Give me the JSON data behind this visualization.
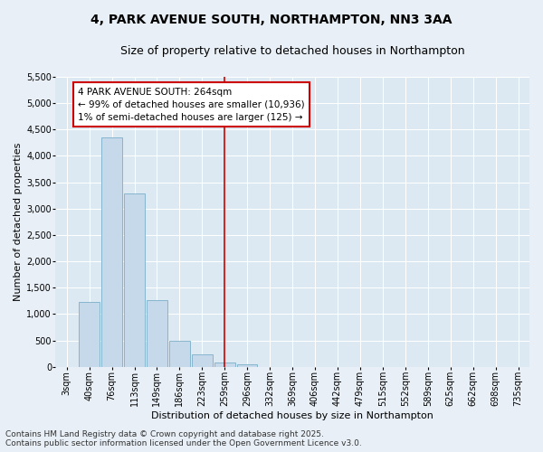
{
  "title_line1": "4, PARK AVENUE SOUTH, NORTHAMPTON, NN3 3AA",
  "title_line2": "Size of property relative to detached houses in Northampton",
  "xlabel": "Distribution of detached houses by size in Northampton",
  "ylabel": "Number of detached properties",
  "footer_line1": "Contains HM Land Registry data © Crown copyright and database right 2025.",
  "footer_line2": "Contains public sector information licensed under the Open Government Licence v3.0.",
  "annotation_line1": "4 PARK AVENUE SOUTH: 264sqm",
  "annotation_line2": "← 99% of detached houses are smaller (10,936)",
  "annotation_line3": "1% of semi-detached houses are larger (125) →",
  "categories": [
    "3sqm",
    "40sqm",
    "76sqm",
    "113sqm",
    "149sqm",
    "186sqm",
    "223sqm",
    "259sqm",
    "296sqm",
    "332sqm",
    "369sqm",
    "406sqm",
    "442sqm",
    "479sqm",
    "515sqm",
    "552sqm",
    "589sqm",
    "625sqm",
    "662sqm",
    "698sqm",
    "735sqm"
  ],
  "values": [
    0,
    1230,
    4350,
    3280,
    1270,
    500,
    230,
    90,
    50,
    0,
    0,
    0,
    0,
    0,
    0,
    0,
    0,
    0,
    0,
    0,
    0
  ],
  "bar_color": "#c6d9ea",
  "bar_edge_color": "#7aaec8",
  "vline_color": "#cc0000",
  "vline_x_index": 7,
  "annotation_box_facecolor": "#ffffff",
  "annotation_box_edgecolor": "#cc0000",
  "background_color": "#e8eff6",
  "plot_bg_color": "#dce8f2",
  "ylim": [
    0,
    5500
  ],
  "yticks": [
    0,
    500,
    1000,
    1500,
    2000,
    2500,
    3000,
    3500,
    4000,
    4500,
    5000,
    5500
  ],
  "grid_color": "#ffffff",
  "title_fontsize": 10,
  "subtitle_fontsize": 9,
  "axis_label_fontsize": 8,
  "tick_fontsize": 7,
  "annotation_fontsize": 7.5,
  "footer_fontsize": 6.5
}
